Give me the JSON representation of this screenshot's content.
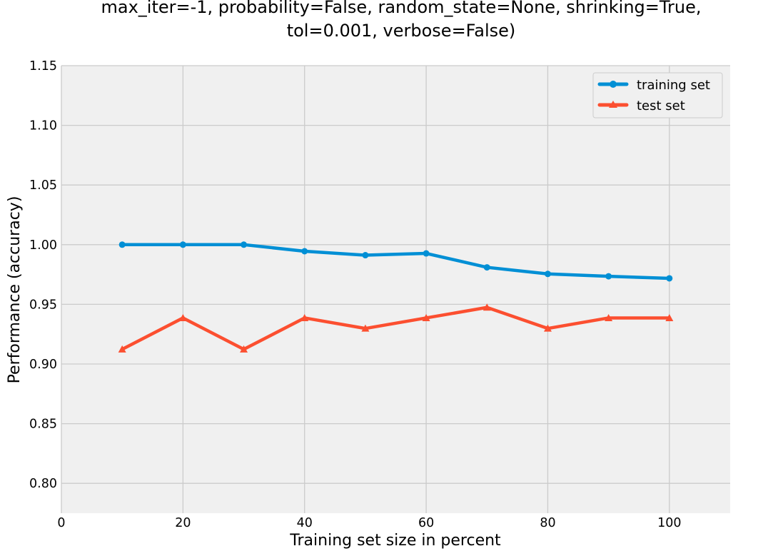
{
  "chart_data": {
    "type": "line",
    "title_lines": [
      "max_iter=-1, probability=False, random_state=None, shrinking=True,",
      "tol=0.001, verbose=False)"
    ],
    "xlabel": "Training set size in percent",
    "ylabel": "Performance (accuracy)",
    "xlim": [
      0,
      110
    ],
    "ylim": [
      0.775,
      1.15
    ],
    "xticks": [
      0,
      20,
      40,
      60,
      80,
      100
    ],
    "yticks": [
      0.8,
      0.85,
      0.9,
      0.95,
      1.0,
      1.05,
      1.1,
      1.15
    ],
    "x": [
      10,
      20,
      30,
      40,
      50,
      60,
      70,
      80,
      90,
      100
    ],
    "series": [
      {
        "name": "training set",
        "marker": "circle",
        "color": "#008fd5",
        "values": [
          1.0,
          1.0,
          1.0,
          0.9945,
          0.9912,
          0.9927,
          0.981,
          0.9755,
          0.9735,
          0.9718
        ]
      },
      {
        "name": "test set",
        "marker": "triangle",
        "color": "#fc4f30",
        "values": [
          0.9123,
          0.9386,
          0.9123,
          0.9386,
          0.9298,
          0.9386,
          0.9474,
          0.9298,
          0.9386,
          0.9386
        ]
      }
    ],
    "grid": true,
    "legend_position": "top-right",
    "background": "#f0f0f0",
    "grid_color": "#cbcbcb"
  }
}
